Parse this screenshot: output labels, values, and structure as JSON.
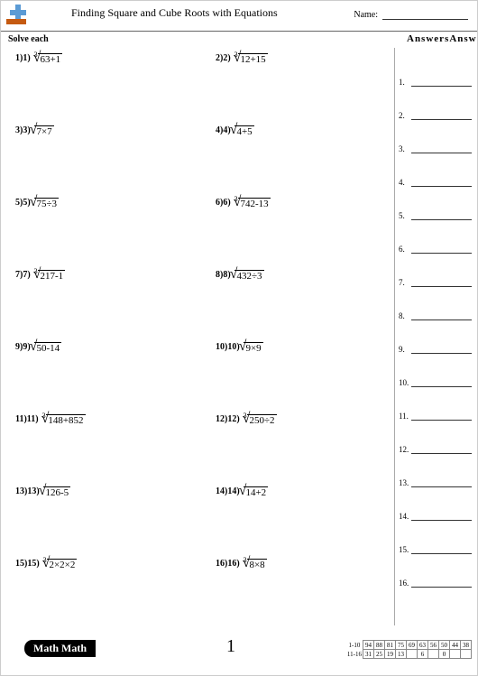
{
  "header": {
    "title": "Finding Square and Cube Roots with Equations",
    "name_label": "Name:"
  },
  "instruction": "Solve each",
  "answers_label": "AnswersAnswers",
  "problems": [
    {
      "n": "1)1)",
      "idx": "3",
      "rad": "63+1"
    },
    {
      "n": "2)2)",
      "idx": "3",
      "rad": "12+15"
    },
    {
      "n": "3)3)",
      "idx": "",
      "rad": "7×7"
    },
    {
      "n": "4)4)",
      "idx": "",
      "rad": "4+5"
    },
    {
      "n": "5)5)",
      "idx": "",
      "rad": "75÷3"
    },
    {
      "n": "6)6)",
      "idx": "3",
      "rad": "742-13"
    },
    {
      "n": "7)7)",
      "idx": "3",
      "rad": "217-1"
    },
    {
      "n": "8)8)",
      "idx": "",
      "rad": "432÷3"
    },
    {
      "n": "9)9)",
      "idx": "",
      "rad": "50-14"
    },
    {
      "n": "10)10)",
      "idx": "",
      "rad": "9×9"
    },
    {
      "n": "11)11)",
      "idx": "3",
      "rad": "148+852"
    },
    {
      "n": "12)12)",
      "idx": "3",
      "rad": "250÷2"
    },
    {
      "n": "13)13)",
      "idx": "",
      "rad": "126-5"
    },
    {
      "n": "14)14)",
      "idx": "",
      "rad": "14+2"
    },
    {
      "n": "15)15)",
      "idx": "3",
      "rad": "2×2×2"
    },
    {
      "n": "16)16)",
      "idx": "3",
      "rad": "8×8"
    }
  ],
  "answer_count": 16,
  "footer": {
    "brand": "Math Math",
    "page_num": "1",
    "score_row1_label": "1-10",
    "score_row2_label": "11-16",
    "score_row1": [
      "94",
      "88",
      "81",
      "75",
      "69",
      "63",
      "56",
      "50",
      "44",
      "38"
    ],
    "score_row2": [
      "31",
      "25",
      "19",
      "13",
      "",
      "6",
      "",
      "0"
    ]
  }
}
